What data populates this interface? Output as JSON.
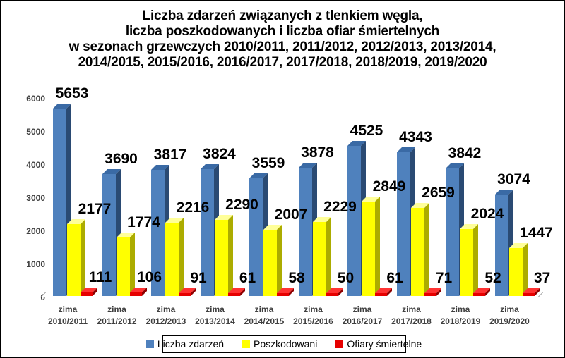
{
  "title": {
    "lines": [
      "Liczba zdarzeń związanych z tlenkiem węgla,",
      "liczba poszkodowanych i liczba ofiar śmiertelnych",
      "w sezonach grzewczych 2010/2011, 2011/2012, 2012/2013, 2013/2014,",
      "2014/2015, 2015/2016, 2016/2017, 2017/2018, 2018/2019, 2019/2020"
    ]
  },
  "chart_data": {
    "type": "bar",
    "style": "3d-clustered-column",
    "category_prefix": "zima",
    "categories": [
      "2010/2011",
      "2011/2012",
      "2012/2013",
      "2013/2014",
      "2014/2015",
      "2015/2016",
      "2016/2017",
      "2017/2018",
      "2018/2019",
      "2019/2020"
    ],
    "series": [
      {
        "name": "Liczba zdarzeń",
        "color": "#4F81BD",
        "color_top": "#3A6AA5",
        "color_side": "#2A4A73",
        "values": [
          5653,
          3690,
          3817,
          3824,
          3559,
          3878,
          4525,
          4343,
          3842,
          3074
        ]
      },
      {
        "name": "Poszkodowani",
        "color": "#FFFF00",
        "color_top": "#FFFF99",
        "color_side": "#ACAC00",
        "values": [
          2177,
          1774,
          2216,
          2290,
          2007,
          2229,
          2849,
          2659,
          2024,
          1447
        ]
      },
      {
        "name": "Ofiary śmiertelne",
        "color": "#E60000",
        "color_top": "#FF3333",
        "color_side": "#8F0000",
        "values": [
          111,
          106,
          91,
          61,
          58,
          50,
          61,
          71,
          52,
          37
        ]
      }
    ],
    "ylim": [
      0,
      6000
    ],
    "y_ticks": [
      0,
      1000,
      2000,
      3000,
      4000,
      5000,
      6000
    ],
    "grid": false,
    "data_labels": true,
    "legend_position": "bottom",
    "axis_label_color": "#3F3F3F",
    "data_label_color": "#000000"
  }
}
